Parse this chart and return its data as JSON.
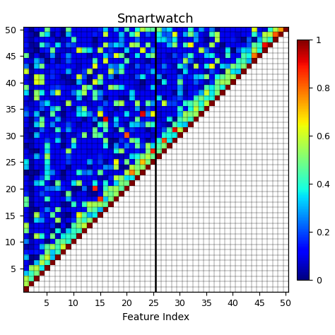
{
  "title": "Smartwatch",
  "xlabel": "Feature Index",
  "n": 50,
  "separator_x": 25,
  "xticks": [
    5,
    10,
    15,
    20,
    25,
    30,
    35,
    40,
    45,
    50
  ],
  "yticks": [
    5,
    10,
    15,
    20,
    25,
    30,
    35,
    40,
    45,
    50
  ],
  "vmin": 0,
  "vmax": 1,
  "colorbar_ticks": [
    0,
    0.2,
    0.4,
    0.6,
    0.8,
    1.0
  ],
  "colorbar_labels": [
    "0",
    "0.2",
    "0.4",
    "0.6",
    "0.8",
    "1"
  ],
  "title_fontsize": 13,
  "label_fontsize": 10,
  "tick_fontsize": 9
}
